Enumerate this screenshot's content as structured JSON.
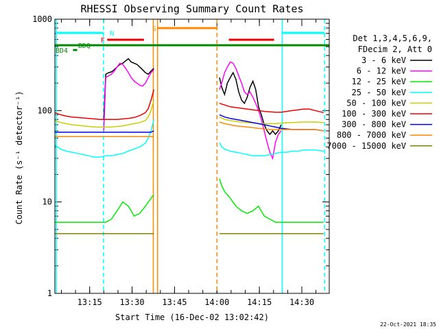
{
  "chart_data": {
    "type": "line",
    "title": "RHESSI Observing Summary Count Rates",
    "xlabel": "Start Time (16-Dec-02 13:02:42)",
    "ylabel": "Count Rate (s⁻¹ detector⁻¹)",
    "yscale": "log",
    "ylim": [
      1,
      1000
    ],
    "xlim_minutes": [
      0,
      97
    ],
    "xticks": [
      {
        "label": "13:15",
        "minute": 12.3
      },
      {
        "label": "13:30",
        "minute": 27.3
      },
      {
        "label": "13:45",
        "minute": 42.3
      },
      {
        "label": "14:00",
        "minute": 57.3
      },
      {
        "label": "14:15",
        "minute": 72.3
      },
      {
        "label": "14:30",
        "minute": 87.3
      }
    ],
    "yticks": [
      {
        "label": "1",
        "value": 1
      },
      {
        "label": "10",
        "value": 10
      },
      {
        "label": "100",
        "value": 100
      },
      {
        "label": "1000",
        "value": 1000
      }
    ],
    "legend_header": [
      "Det 1,3,4,5,6,9,",
      "FDecim 2, Att 0"
    ],
    "series": [
      {
        "name": "3 - 6 keV",
        "color": "#000000",
        "segments": [
          {
            "x": [
              17.3,
              18,
              19,
              20,
              21,
              22,
              23,
              24,
              25,
              26,
              27,
              28,
              29,
              30,
              31,
              32,
              33,
              34,
              35
            ],
            "y": [
              80,
              250,
              260,
              265,
              280,
              300,
              320,
              330,
              350,
              370,
              340,
              330,
              320,
              300,
              280,
              260,
              250,
              270,
              290
            ]
          },
          {
            "x": [
              58.2,
              59,
              60,
              61,
              62,
              63,
              64,
              65,
              66,
              67,
              68,
              69,
              70,
              71,
              72,
              73,
              74,
              75,
              76,
              77,
              78,
              79,
              80
            ],
            "y": [
              230,
              180,
              150,
              200,
              230,
              260,
              220,
              160,
              130,
              120,
              140,
              180,
              210,
              170,
              110,
              90,
              70,
              60,
              55,
              60,
              55,
              60,
              70
            ]
          }
        ]
      },
      {
        "name": "6 - 12 keV",
        "color": "#ff00ff",
        "segments": [
          {
            "x": [
              17.3,
              18,
              19,
              20,
              21,
              22,
              23,
              24,
              25,
              26,
              27,
              28,
              29,
              30,
              31,
              32,
              33,
              34,
              35
            ],
            "y": [
              60,
              230,
              240,
              250,
              270,
              300,
              330,
              320,
              290,
              260,
              230,
              210,
              200,
              190,
              185,
              200,
              230,
              260,
              280
            ]
          },
          {
            "x": [
              58.2,
              59,
              60,
              61,
              62,
              63,
              64,
              65,
              66,
              67,
              68,
              69,
              70,
              71,
              72,
              73,
              74,
              75,
              76,
              77,
              78,
              79,
              80
            ],
            "y": [
              170,
              200,
              260,
              300,
              340,
              330,
              290,
              240,
              200,
              160,
              150,
              160,
              140,
              120,
              100,
              80,
              60,
              45,
              35,
              30,
              45,
              55,
              60
            ]
          }
        ]
      },
      {
        "name": "12 - 25 keV",
        "color": "#00ee00",
        "segments": [
          {
            "x": [
              0,
              2,
              4,
              6,
              8,
              10,
              12,
              14,
              16,
              18,
              20,
              22,
              24,
              26,
              28,
              30,
              32,
              34,
              35
            ],
            "y": [
              6,
              6,
              6,
              6,
              6,
              6,
              6,
              6,
              6,
              6,
              6.5,
              8,
              10,
              9,
              7,
              7.5,
              9,
              11,
              12
            ]
          },
          {
            "x": [
              58.2,
              59,
              60,
              62,
              64,
              66,
              68,
              70,
              72,
              74,
              76,
              78,
              80,
              84,
              88,
              92,
              95
            ],
            "y": [
              18,
              15,
              13,
              11,
              9,
              8,
              7.5,
              8,
              9,
              7,
              6.5,
              6,
              6,
              6,
              6,
              6,
              6
            ]
          }
        ]
      },
      {
        "name": "25 - 50 keV",
        "color": "#00ffff",
        "segments": [
          {
            "x": [
              0,
              2,
              4,
              6,
              8,
              10,
              12,
              14,
              16,
              18,
              20,
              22,
              24,
              26,
              28,
              30,
              32,
              33,
              34,
              35
            ],
            "y": [
              42,
              38,
              36,
              35,
              34,
              33,
              32,
              31,
              31,
              32,
              32,
              33,
              34,
              36,
              38,
              40,
              44,
              50,
              60,
              80
            ]
          },
          {
            "x": [
              58.2,
              59,
              60,
              62,
              64,
              66,
              68,
              70,
              72,
              74,
              76,
              78,
              80,
              82,
              84,
              86,
              88,
              90,
              92,
              95
            ],
            "y": [
              45,
              40,
              38,
              36,
              35,
              34,
              33,
              32,
              32,
              32,
              33,
              34,
              35,
              35,
              36,
              36,
              37,
              37,
              37,
              36
            ]
          }
        ]
      },
      {
        "name": "50 - 100 keV",
        "color": "#cccc00",
        "segments": [
          {
            "x": [
              0,
              2,
              4,
              6,
              8,
              10,
              12,
              14,
              16,
              18,
              20,
              22,
              24,
              26,
              28,
              30,
              32,
              33,
              34,
              35
            ],
            "y": [
              78,
              74,
              72,
              70,
              69,
              68,
              67,
              66,
              66,
              66,
              66,
              67,
              68,
              70,
              72,
              74,
              78,
              85,
              100,
              130
            ]
          },
          {
            "x": [
              58.2,
              60,
              62,
              64,
              66,
              68,
              70,
              72,
              74,
              76,
              78,
              80,
              84,
              88,
              92,
              95
            ],
            "y": [
              85,
              80,
              78,
              76,
              75,
              74,
              73,
              72,
              72,
              72,
              72,
              73,
              74,
              75,
              75,
              74
            ]
          }
        ]
      },
      {
        "name": "100 - 300 keV",
        "color": "#ee0000",
        "segments": [
          {
            "x": [
              0,
              2,
              4,
              6,
              8,
              10,
              12,
              14,
              16,
              18,
              20,
              22,
              24,
              26,
              28,
              30,
              32,
              33,
              34,
              35
            ],
            "y": [
              95,
              90,
              87,
              85,
              84,
              83,
              82,
              81,
              80,
              80,
              80,
              80,
              81,
              82,
              84,
              88,
              95,
              105,
              130,
              170
            ]
          },
          {
            "x": [
              58.2,
              60,
              62,
              64,
              66,
              68,
              70,
              72,
              74,
              76,
              78,
              80,
              82,
              84,
              86,
              88,
              90,
              92,
              95
            ],
            "y": [
              120,
              115,
              110,
              108,
              106,
              104,
              102,
              100,
              98,
              97,
              96,
              96,
              98,
              100,
              102,
              104,
              104,
              100,
              95
            ]
          }
        ]
      },
      {
        "name": "300 - 800 keV",
        "color": "#0000ee",
        "segments": [
          {
            "x": [
              0,
              2,
              4,
              6,
              8,
              10,
              12,
              14,
              16,
              18,
              20,
              22,
              24,
              26,
              28,
              30,
              32,
              34,
              35
            ],
            "y": [
              58,
              58,
              58,
              58,
              58,
              58,
              58,
              58,
              58,
              58,
              58,
              58,
              58,
              58,
              58,
              58,
              58,
              58,
              60
            ]
          },
          {
            "x": [
              58.2,
              60,
              62,
              64,
              66,
              68,
              70,
              72,
              74,
              76,
              78,
              80,
              84,
              88,
              92,
              95
            ],
            "y": [
              90,
              85,
              82,
              80,
              78,
              76,
              74,
              72,
              70,
              68,
              66,
              64,
              62,
              62,
              62,
              60
            ]
          }
        ]
      },
      {
        "name": "800 - 7000 keV",
        "color": "#ff8800",
        "segments": [
          {
            "x": [
              0,
              2,
              4,
              6,
              8,
              10,
              12,
              14,
              16,
              18,
              20,
              22,
              24,
              26,
              28,
              30,
              32,
              34,
              35
            ],
            "y": [
              52,
              52,
              52,
              52,
              52,
              52,
              52,
              52,
              52,
              52,
              52,
              52,
              52,
              52,
              52,
              52,
              52,
              52,
              52
            ]
          },
          {
            "x": [
              58.2,
              60,
              62,
              64,
              66,
              68,
              70,
              72,
              74,
              76,
              78,
              80,
              84,
              88,
              92,
              95
            ],
            "y": [
              75,
              72,
              70,
              68,
              67,
              66,
              65,
              64,
              63,
              62,
              62,
              62,
              62,
              62,
              62,
              60
            ]
          }
        ]
      },
      {
        "name": "7000 - 15000 keV",
        "color": "#808000",
        "segments": [
          {
            "x": [
              0,
              2,
              4,
              6,
              8,
              10,
              12,
              14,
              16,
              18,
              20,
              22,
              24,
              26,
              28,
              30,
              32,
              34,
              35
            ],
            "y": [
              4.5,
              4.5,
              4.5,
              4.5,
              4.5,
              4.5,
              4.5,
              4.5,
              4.5,
              4.5,
              4.5,
              4.5,
              4.5,
              4.5,
              4.5,
              4.5,
              4.5,
              4.5,
              4.5
            ]
          },
          {
            "x": [
              58.2,
              60,
              62,
              64,
              66,
              68,
              70,
              72,
              74,
              76,
              78,
              80,
              84,
              88,
              92,
              95
            ],
            "y": [
              4.5,
              4.5,
              4.5,
              4.5,
              4.5,
              4.5,
              4.5,
              4.5,
              4.5,
              4.5,
              4.5,
              4.5,
              4.5,
              4.5,
              4.5,
              4.5
            ]
          }
        ]
      }
    ],
    "vertical_markers": [
      {
        "minute": 0.5,
        "color": "#00ffff",
        "style": "solid"
      },
      {
        "minute": 17.2,
        "color": "#00ffff",
        "style": "dashed"
      },
      {
        "minute": 34.8,
        "color": "#ff8800",
        "style": "solid"
      },
      {
        "minute": 36.3,
        "color": "#ff8800",
        "style": "solid"
      },
      {
        "minute": 57.3,
        "color": "#ff8800",
        "style": "dashed"
      },
      {
        "minute": 80.4,
        "color": "#00ffff",
        "style": "solid"
      },
      {
        "minute": 95.4,
        "color": "#00ffff",
        "style": "dashed"
      }
    ],
    "flag_bars": [
      {
        "label": "N",
        "color": "#00ffff",
        "label_color": "#00ffff",
        "ranges": [
          [
            0.5,
            17.2
          ],
          [
            80.4,
            95.4
          ]
        ],
        "level": 1,
        "label_at": 19.5
      },
      {
        "label": "S",
        "color": "#ff8800",
        "label_color": "#ff8800",
        "ranges": [
          [
            36.3,
            57.3
          ]
        ],
        "level": 2,
        "label_at": 34.4
      },
      {
        "label": "F",
        "color": "#ee0000",
        "label_color": "#ee0000",
        "ranges": [
          [
            18.5,
            31.5
          ],
          [
            61.5,
            77.5
          ]
        ],
        "level": 3,
        "label_at": 16.2
      },
      {
        "label": "BDQ",
        "color": "#008800",
        "label_color": "#008800",
        "ranges": [
          [
            0,
            97
          ]
        ],
        "level": 4,
        "label_at": 8.2
      },
      {
        "label": "BD4",
        "color": "#008800",
        "label_color": "#008800",
        "ranges": [
          [
            6.4,
            7.9
          ]
        ],
        "level": 5,
        "label_at": 0.2
      }
    ]
  },
  "footer": {
    "timestamp": "22-Oct-2021 18:35"
  }
}
